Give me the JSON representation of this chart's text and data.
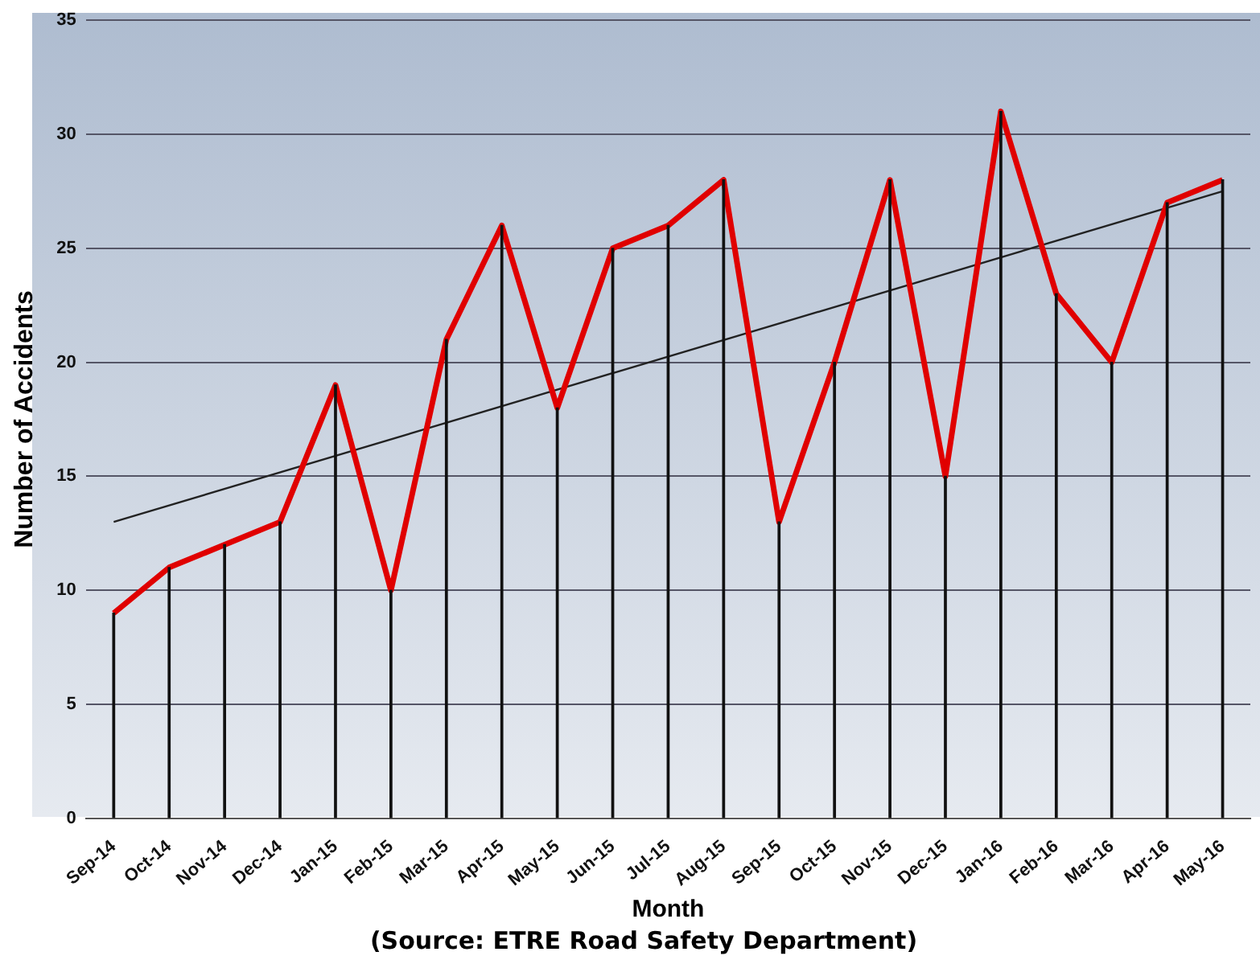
{
  "chart_data": {
    "type": "line",
    "xlabel": "Month",
    "ylabel": "Number of Accidents",
    "annotations": [
      "(Source: ETRE Road Safety Department)"
    ],
    "categories": [
      "Sep-14",
      "Oct-14",
      "Nov-14",
      "Dec-14",
      "Jan-15",
      "Feb-15",
      "Mar-15",
      "Apr-15",
      "May-15",
      "Jun-15",
      "Jul-15",
      "Aug-15",
      "Sep-15",
      "Oct-15",
      "Nov-15",
      "Dec-15",
      "Jan-16",
      "Feb-16",
      "Mar-16",
      "Apr-16",
      "May-16"
    ],
    "series": [
      {
        "color": "#e00000",
        "values": [
          9,
          11,
          12,
          13,
          19,
          10,
          21,
          26,
          18,
          25,
          26,
          28,
          13,
          20,
          28,
          15,
          31,
          23,
          20,
          27,
          28
        ]
      },
      {
        "type": "line",
        "color": "#222222",
        "x": [
          "Sep-14",
          "May-16"
        ],
        "values": [
          13,
          27.5
        ]
      },
      {
        "type": "bar",
        "color": "#111111",
        "values": [
          9,
          11,
          12,
          13,
          19,
          10,
          21,
          26,
          18,
          25,
          26,
          28,
          13,
          20,
          28,
          15,
          31,
          23,
          20,
          27,
          28
        ]
      }
    ],
    "ylim": [
      0,
      35
    ],
    "yticks": [
      0,
      5,
      10,
      15,
      20,
      25,
      30,
      35
    ],
    "grid": "y",
    "legend": false,
    "marker": "none"
  }
}
